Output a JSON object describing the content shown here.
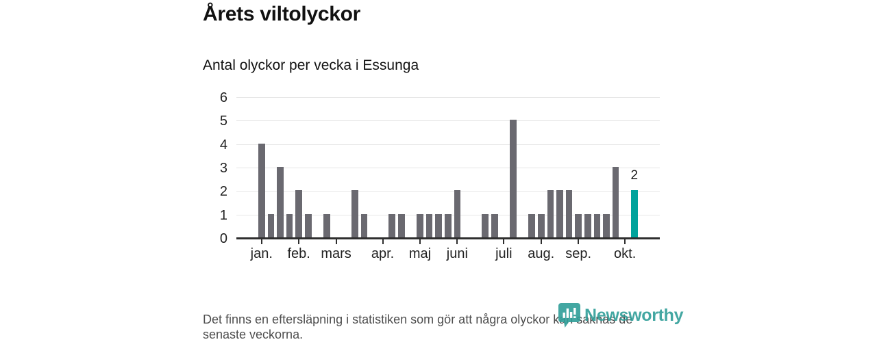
{
  "header": {
    "title": "Årets viltolyckor",
    "subtitle": "Antal olyckor per vecka i Essunga"
  },
  "chart_data": {
    "type": "bar",
    "title": "Årets viltolyckor",
    "subtitle": "Antal olyckor per vecka i Essunga",
    "x_unit": "week number",
    "x": [
      1,
      2,
      3,
      4,
      5,
      6,
      7,
      8,
      9,
      10,
      11,
      12,
      13,
      14,
      15,
      16,
      17,
      18,
      19,
      20,
      21,
      22,
      23,
      24,
      25,
      26,
      27,
      28,
      29,
      30,
      31,
      32,
      33,
      34,
      35,
      36,
      37,
      38,
      39,
      40,
      41
    ],
    "values": [
      4,
      1,
      3,
      1,
      2,
      1,
      0,
      1,
      0,
      0,
      2,
      1,
      0,
      0,
      1,
      1,
      0,
      1,
      1,
      1,
      1,
      2,
      0,
      0,
      1,
      1,
      0,
      5,
      0,
      1,
      1,
      2,
      2,
      2,
      1,
      1,
      1,
      1,
      3,
      0,
      2
    ],
    "highlight": {
      "week": 41,
      "value": 2,
      "label": "2"
    },
    "bar_color": "#6a6970",
    "highlight_color": "#00a39c",
    "ylim": [
      0,
      6
    ],
    "yticks": [
      0,
      1,
      2,
      3,
      4,
      5,
      6
    ],
    "xticks": [
      {
        "week": 1,
        "label": "jan."
      },
      {
        "week": 5,
        "label": "feb."
      },
      {
        "week": 9,
        "label": "mars"
      },
      {
        "week": 14,
        "label": "apr."
      },
      {
        "week": 18,
        "label": "maj"
      },
      {
        "week": 22,
        "label": "juni"
      },
      {
        "week": 27,
        "label": "juli"
      },
      {
        "week": 31,
        "label": "aug."
      },
      {
        "week": 35,
        "label": "sep."
      },
      {
        "week": 40,
        "label": "okt."
      }
    ],
    "grid": true,
    "legend": false
  },
  "footer": {
    "note": "Det finns en eftersläpning i statistiken som gör att några olyckor kan saknas de senaste veckorna."
  },
  "logo": {
    "text": "Newsworthy",
    "icon": "newsworthy-pin-barchart-icon",
    "color": "#2f9e98"
  },
  "colors": {
    "bar": "#6a6970",
    "highlight": "#00a39c",
    "grid": "#e6e6e6",
    "axis": "#2e2e2e",
    "text": "#111111",
    "muted": "#4e4e4e"
  }
}
